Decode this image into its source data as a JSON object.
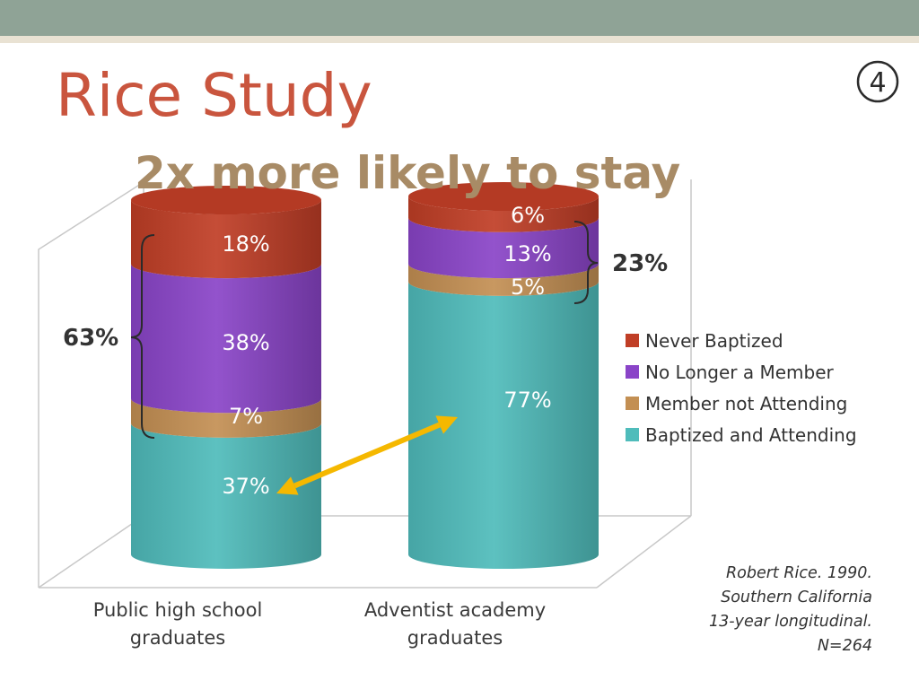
{
  "slide_number": "④",
  "title": "Rice Study",
  "subtitle": "2x more likely to stay",
  "chart_data": {
    "type": "bar",
    "style": "3d-stacked-cylinders",
    "categories": [
      "Public high school graduates",
      "Adventist academy graduates"
    ],
    "category_label_lines": [
      [
        "Public high school",
        "graduates"
      ],
      [
        "Adventist academy",
        "graduates"
      ]
    ],
    "series": [
      {
        "name": "Baptized and Attending",
        "color": "#4fbcbb",
        "values": [
          37,
          77
        ],
        "labels": [
          "37%",
          "77%"
        ]
      },
      {
        "name": "Member not Attending",
        "color": "#c38f53",
        "values": [
          7,
          5
        ],
        "labels": [
          "7%",
          "5%"
        ]
      },
      {
        "name": "No Longer a Member",
        "color": "#8a44c8",
        "values": [
          38,
          13
        ],
        "labels": [
          "38%",
          "13%"
        ]
      },
      {
        "name": "Never Baptized",
        "color": "#c03e26",
        "values": [
          18,
          6
        ],
        "labels": [
          "18%",
          "6%"
        ]
      }
    ],
    "legend": [
      "Never Baptized",
      "No Longer a Member",
      "Member not Attending",
      "Baptized and Attending"
    ],
    "legend_colors": [
      "#c03e26",
      "#8a44c8",
      "#c38f53",
      "#4fbcbb"
    ],
    "legend_position": "right",
    "ylim": [
      0,
      100
    ],
    "brace_annotations": [
      {
        "label": "63%",
        "category": "Public high school graduates",
        "spans": [
          "Member not Attending",
          "No Longer a Member",
          "Never Baptized"
        ],
        "side": "left"
      },
      {
        "label": "23%",
        "category": "Adventist academy graduates",
        "spans": [
          "Member not Attending",
          "No Longer a Member",
          "Never Baptized"
        ],
        "side": "right"
      }
    ],
    "arrow_annotation": {
      "from": "37%",
      "to": "77%",
      "color": "#f5b800"
    }
  },
  "citation": [
    "Robert Rice. 1990.",
    "Southern California",
    "13-year longitudinal.",
    "N=264"
  ]
}
